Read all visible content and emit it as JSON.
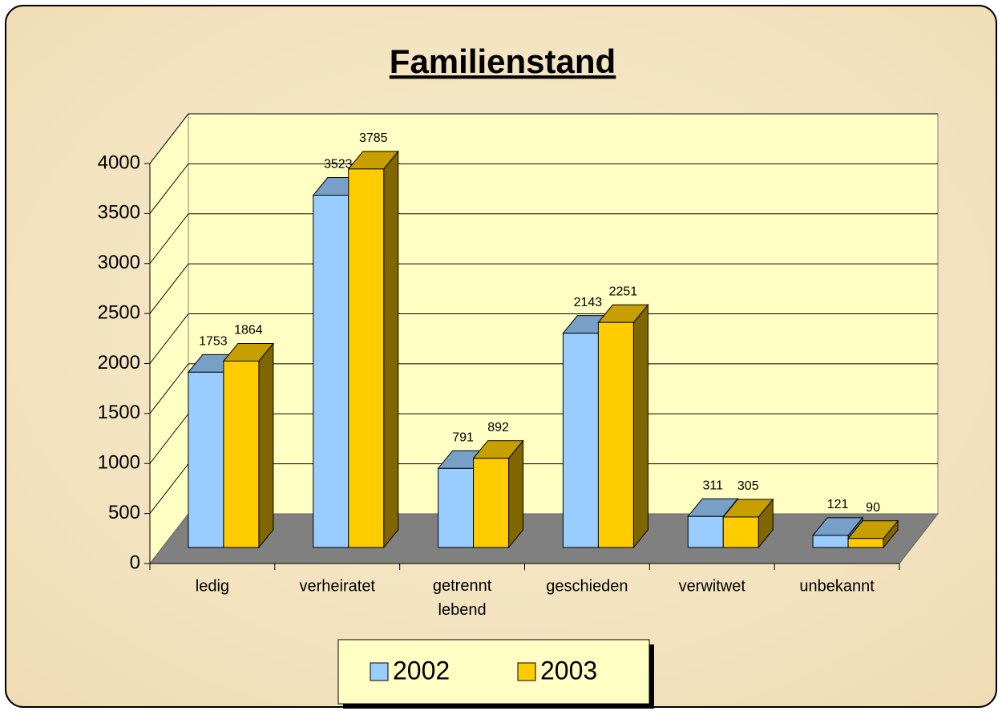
{
  "chart_data": {
    "type": "bar3d",
    "title": "Familienstand",
    "categories": [
      "ledig",
      "verheiratet",
      "getrennt lebend",
      "geschieden",
      "verwitwet",
      "unbekannt"
    ],
    "series": [
      {
        "name": "2002",
        "color": "#99ccff",
        "values": [
          1753,
          3523,
          791,
          2143,
          311,
          121
        ]
      },
      {
        "name": "2003",
        "color": "#ffcc00",
        "values": [
          1864,
          3785,
          892,
          2251,
          305,
          90
        ]
      }
    ],
    "ylim": [
      0,
      4000
    ],
    "yticks": [
      0,
      500,
      1000,
      1500,
      2000,
      2500,
      3000,
      3500,
      4000
    ],
    "grid": true,
    "legend": "bottom"
  }
}
